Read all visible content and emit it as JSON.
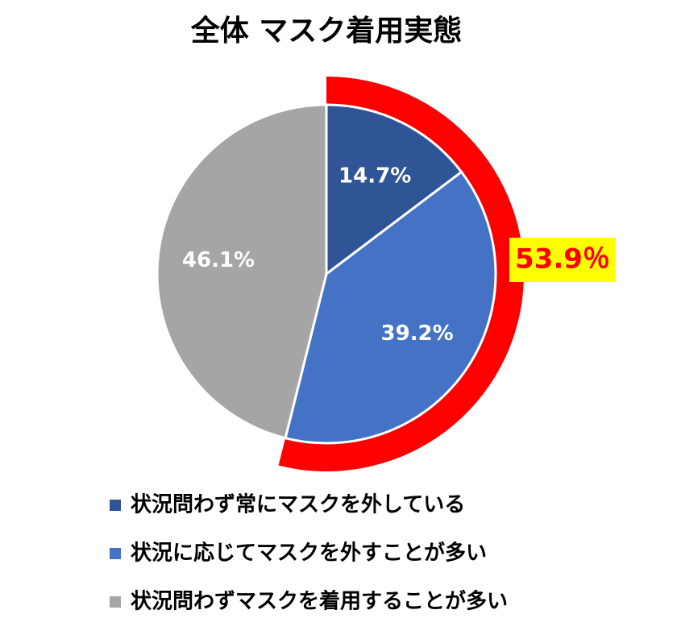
{
  "chart_data": {
    "type": "pie",
    "title": "全体 マスク着用実態",
    "categories": [
      "状況問わず常にマスクを外している",
      "状況に応じてマスクを外すことが多い",
      "状況問わずマスクを着用することが多い"
    ],
    "values": [
      14.7,
      39.2,
      46.1
    ],
    "value_labels": [
      "14.7%",
      "39.2%",
      "46.1%"
    ],
    "colors": [
      "#2f5597",
      "#4472c4",
      "#a5a5a5"
    ],
    "annotation": {
      "value": 53.9,
      "label": "53.9％",
      "color": "#ff0000"
    },
    "legend": "bottom"
  }
}
